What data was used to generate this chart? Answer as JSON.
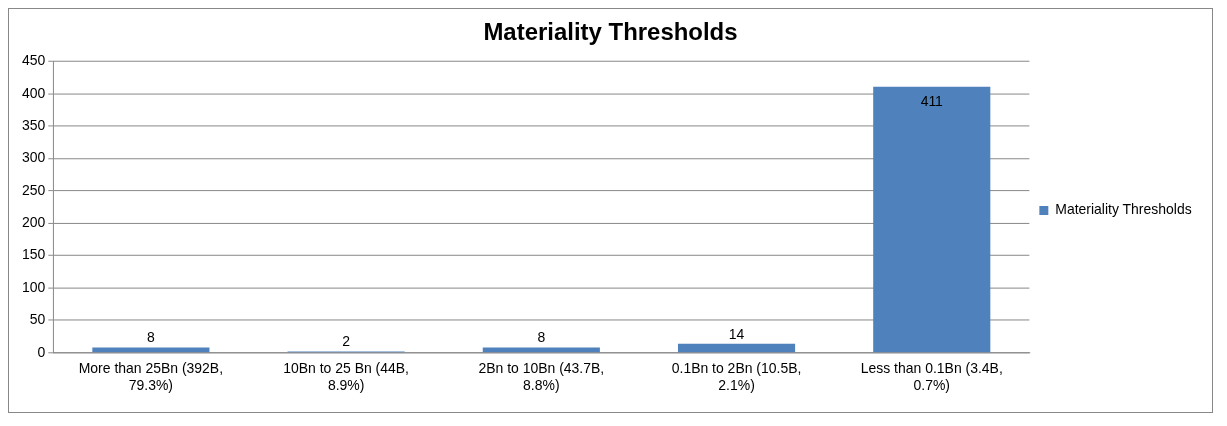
{
  "chart_data": {
    "type": "bar",
    "title": "Materiality Thresholds",
    "categories": [
      "More than 25Bn (392B, 79.3%)",
      "10Bn to 25 Bn (44B, 8.9%)",
      "2Bn to 10Bn (43.7B, 8.8%)",
      "0.1Bn to 2Bn (10.5B, 2.1%)",
      "Less than 0.1Bn (3.4B, 0.7%)"
    ],
    "series": [
      {
        "name": "Materiality Thresholds",
        "color": "#4f81bd",
        "values": [
          8,
          2,
          8,
          14,
          411
        ]
      }
    ],
    "ylim": [
      0,
      450
    ],
    "yticks": [
      0,
      50,
      100,
      150,
      200,
      250,
      300,
      350,
      400,
      450
    ],
    "grid": "y",
    "legend": "right",
    "data_labels": true
  }
}
